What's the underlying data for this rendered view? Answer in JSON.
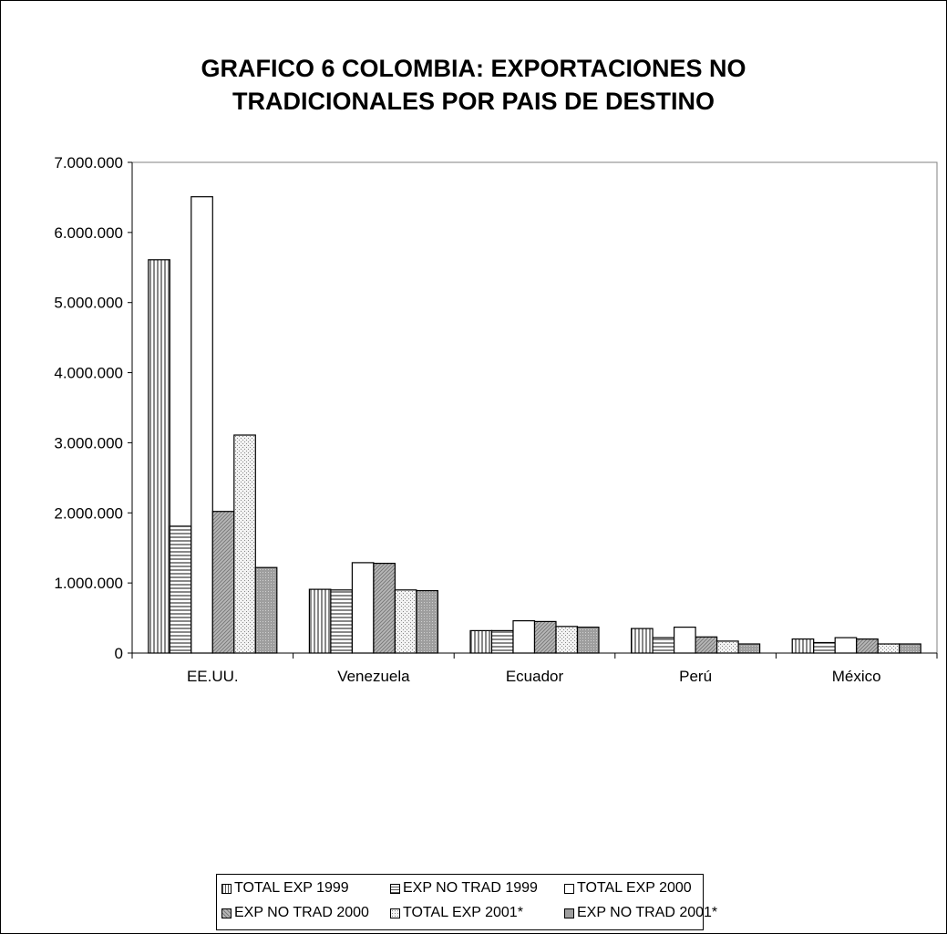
{
  "chart_data": {
    "type": "bar",
    "title": "GRAFICO 6  COLOMBIA: EXPORTACIONES NO TRADICIONALES POR PAIS DE DESTINO",
    "title_lines": [
      "GRAFICO 6  COLOMBIA: EXPORTACIONES NO",
      "TRADICIONALES POR PAIS DE DESTINO"
    ],
    "xlabel": "",
    "ylabel": "",
    "ylim": [
      0,
      7000000
    ],
    "yticks": [
      "0",
      "1.000.000",
      "2.000.000",
      "3.000.000",
      "4.000.000",
      "5.000.000",
      "6.000.000",
      "7.000.000"
    ],
    "ytick_values": [
      0,
      1000000,
      2000000,
      3000000,
      4000000,
      5000000,
      6000000,
      7000000
    ],
    "categories": [
      "EE.UU.",
      "Venezuela",
      "Ecuador",
      "Perú",
      "México"
    ],
    "grid": false,
    "legend_position": "bottom",
    "series": [
      {
        "name": "TOTAL EXP 1999",
        "pattern": "vertical-lines",
        "values": [
          5610000,
          910000,
          320000,
          350000,
          200000
        ]
      },
      {
        "name": "EXP NO TRAD 1999",
        "pattern": "horizontal-lines",
        "values": [
          1810000,
          900000,
          320000,
          220000,
          150000
        ]
      },
      {
        "name": "TOTAL EXP 2000",
        "pattern": "solid-white",
        "values": [
          6510000,
          1290000,
          460000,
          370000,
          220000
        ]
      },
      {
        "name": "EXP NO TRAD 2000",
        "pattern": "diagonal-lines",
        "values": [
          2020000,
          1280000,
          450000,
          230000,
          200000
        ]
      },
      {
        "name": "TOTAL EXP 2001*",
        "pattern": "dots",
        "values": [
          3110000,
          900000,
          380000,
          170000,
          130000
        ]
      },
      {
        "name": "EXP NO TRAD 2001*",
        "pattern": "fine-dots",
        "values": [
          1220000,
          890000,
          370000,
          130000,
          130000
        ]
      }
    ]
  }
}
